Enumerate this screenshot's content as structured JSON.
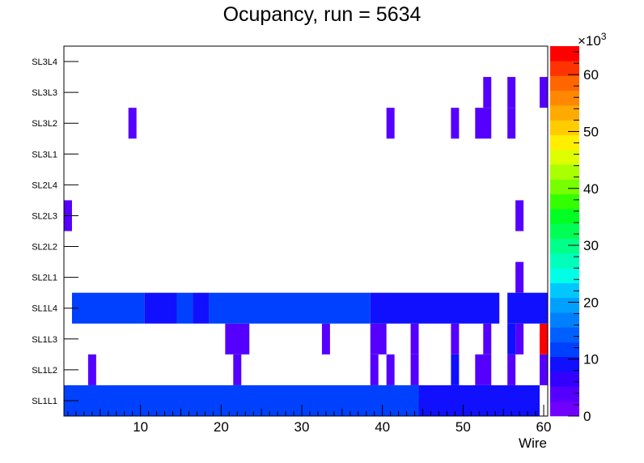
{
  "chart_data": {
    "type": "heatmap",
    "title": "Ocupancy, run = 5634",
    "xlabel": "Wire",
    "ylabel": "",
    "xlim": [
      0.5,
      60.5
    ],
    "x_ticks": [
      10,
      20,
      30,
      40,
      50,
      60
    ],
    "categories": [
      "SL1L1",
      "SL1L2",
      "SL1L3",
      "SL1L4",
      "SL2L1",
      "SL2L2",
      "SL2L3",
      "SL2L4",
      "SL3L1",
      "SL3L2",
      "SL3L3",
      "SL3L4"
    ],
    "colorbar": {
      "min": 0,
      "max": 65,
      "exponent_label": "×10",
      "exponent": "3",
      "ticks": [
        0,
        10,
        20,
        30,
        40,
        50,
        60
      ],
      "colors": [
        "#7000ff",
        "#5500ff",
        "#3300ff",
        "#1010ff",
        "#0040ff",
        "#0060ff",
        "#0080ff",
        "#00a0ff",
        "#00c8ff",
        "#00ffe6",
        "#00ffbb",
        "#00ff88",
        "#00ff55",
        "#00ff22",
        "#33ff00",
        "#77ff00",
        "#aaff00",
        "#ddff00",
        "#ffee00",
        "#ffcc00",
        "#ffaa00",
        "#ff8800",
        "#ff6600",
        "#ff3300",
        "#ff0000"
      ]
    },
    "cells": [
      {
        "layer": "SL1L1",
        "x": [
          0.5,
          44.5
        ],
        "value": 11000
      },
      {
        "layer": "SL1L1",
        "x": [
          44.5,
          59.5
        ],
        "value": 8500
      },
      {
        "layer": "SL1L2",
        "x": [
          3.5,
          4.5
        ],
        "value": 3000
      },
      {
        "layer": "SL1L2",
        "x": [
          21.5,
          22.5
        ],
        "value": 3000
      },
      {
        "layer": "SL1L2",
        "x": [
          38.5,
          39.5
        ],
        "value": 3000
      },
      {
        "layer": "SL1L2",
        "x": [
          40.5,
          41.5
        ],
        "value": 3000
      },
      {
        "layer": "SL1L2",
        "x": [
          43.5,
          44.5
        ],
        "value": 3000
      },
      {
        "layer": "SL1L2",
        "x": [
          48.5,
          49.5
        ],
        "value": 9000
      },
      {
        "layer": "SL1L2",
        "x": [
          51.5,
          53.5
        ],
        "value": 3000
      },
      {
        "layer": "SL1L2",
        "x": [
          55.5,
          56.5
        ],
        "value": 3000
      },
      {
        "layer": "SL1L2",
        "x": [
          59.5,
          60.5
        ],
        "value": 3000
      },
      {
        "layer": "SL1L3",
        "x": [
          20.5,
          23.5
        ],
        "value": 3000
      },
      {
        "layer": "SL1L3",
        "x": [
          32.5,
          33.5
        ],
        "value": 3000
      },
      {
        "layer": "SL1L3",
        "x": [
          38.5,
          40.5
        ],
        "value": 3000
      },
      {
        "layer": "SL1L3",
        "x": [
          43.5,
          44.5
        ],
        "value": 3000
      },
      {
        "layer": "SL1L3",
        "x": [
          48.5,
          49.5
        ],
        "value": 3000
      },
      {
        "layer": "SL1L3",
        "x": [
          52.5,
          53.5
        ],
        "value": 3000
      },
      {
        "layer": "SL1L3",
        "x": [
          55.5,
          56.5
        ],
        "value": 8000
      },
      {
        "layer": "SL1L3",
        "x": [
          56.5,
          57.5
        ],
        "value": 3000
      },
      {
        "layer": "SL1L3",
        "x": [
          59.5,
          60.5
        ],
        "value": 64000
      },
      {
        "layer": "SL1L4",
        "x": [
          1.5,
          10.5
        ],
        "value": 11000
      },
      {
        "layer": "SL1L4",
        "x": [
          10.5,
          14.5
        ],
        "value": 8000
      },
      {
        "layer": "SL1L4",
        "x": [
          14.5,
          16.5
        ],
        "value": 11000
      },
      {
        "layer": "SL1L4",
        "x": [
          16.5,
          18.5
        ],
        "value": 8000
      },
      {
        "layer": "SL1L4",
        "x": [
          18.5,
          38.5
        ],
        "value": 11000
      },
      {
        "layer": "SL1L4",
        "x": [
          38.5,
          54.5
        ],
        "value": 8500
      },
      {
        "layer": "SL1L4",
        "x": [
          55.5,
          60.5
        ],
        "value": 9000
      },
      {
        "layer": "SL2L1",
        "x": [
          56.5,
          57.5
        ],
        "value": 3000
      },
      {
        "layer": "SL2L3",
        "x": [
          0.5,
          1.5
        ],
        "value": 3000
      },
      {
        "layer": "SL2L3",
        "x": [
          56.5,
          57.5
        ],
        "value": 3000
      },
      {
        "layer": "SL3L2",
        "x": [
          8.5,
          9.5
        ],
        "value": 3000
      },
      {
        "layer": "SL3L2",
        "x": [
          40.5,
          41.5
        ],
        "value": 3000
      },
      {
        "layer": "SL3L2",
        "x": [
          48.5,
          49.5
        ],
        "value": 3000
      },
      {
        "layer": "SL3L2",
        "x": [
          51.5,
          53.5
        ],
        "value": 3000
      },
      {
        "layer": "SL3L2",
        "x": [
          55.5,
          56.5
        ],
        "value": 3000
      },
      {
        "layer": "SL3L3",
        "x": [
          52.5,
          53.5
        ],
        "value": 3000
      },
      {
        "layer": "SL3L3",
        "x": [
          55.5,
          56.5
        ],
        "value": 3000
      },
      {
        "layer": "SL3L3",
        "x": [
          59.5,
          60.5
        ],
        "value": 3000
      }
    ]
  }
}
